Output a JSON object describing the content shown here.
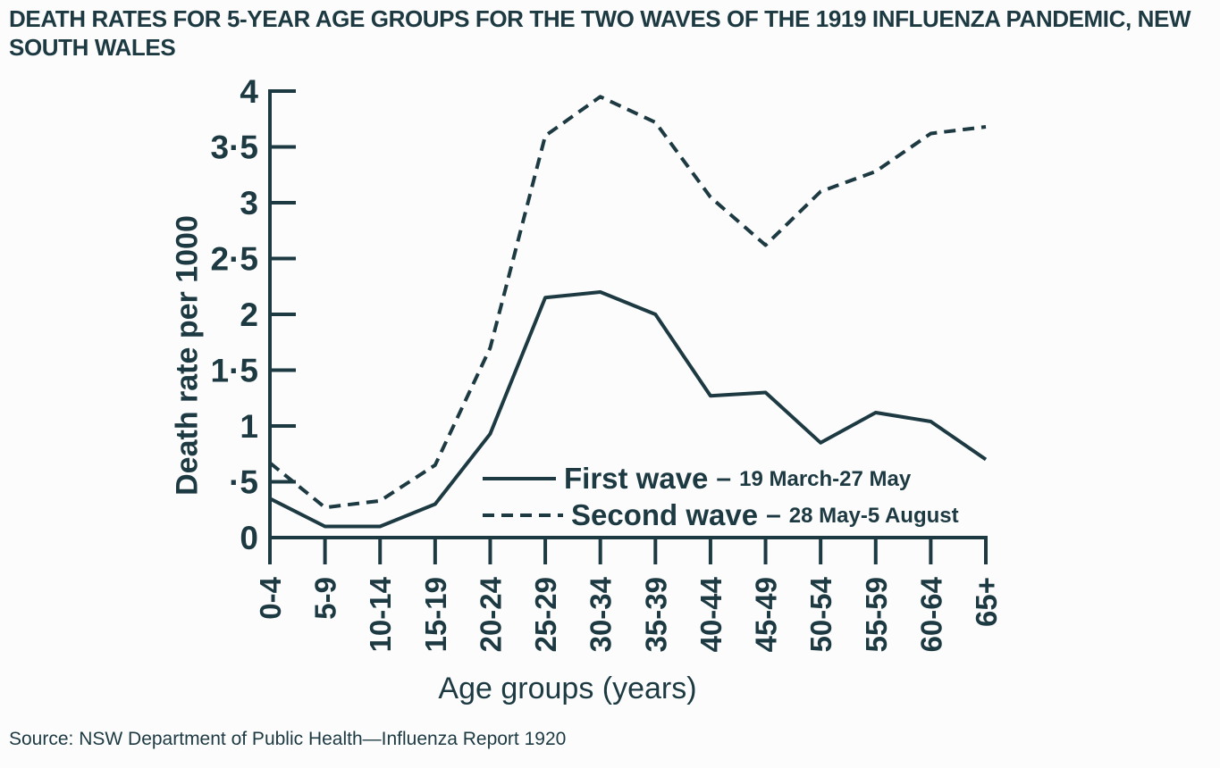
{
  "page": {
    "title_line1": "DEATH RATES FOR 5-YEAR AGE GROUPS FOR THE TWO WAVES OF THE 1919 INFLUENZA PANDEMIC, NEW",
    "title_line2": "SOUTH WALES",
    "source": "Source: NSW Department of Public Health—Influenza Report 1920"
  },
  "colors": {
    "ink": "#1d3a42",
    "background": "#fcfcfc"
  },
  "chart_data": {
    "type": "line",
    "title": "DEATH RATES FOR 5-YEAR AGE GROUPS FOR THE TWO WAVES OF THE 1919 INFLUENZA PANDEMIC, NEW SOUTH WALES",
    "xlabel": "Age groups (years)",
    "ylabel": "Death rate per 1000",
    "ylim": [
      0,
      4
    ],
    "grid": false,
    "legend_position": "inside-bottom-center",
    "legend_separator": "–",
    "ytick_values": [
      0,
      0.5,
      1,
      1.5,
      2,
      2.5,
      3,
      3.5,
      4
    ],
    "ytick_labels": [
      "0",
      "·5",
      "1",
      "1·5",
      "2",
      "2·5",
      "3",
      "3·5",
      "4"
    ],
    "categories": [
      "0-4",
      "5-9",
      "10-14",
      "15-19",
      "20-24",
      "25-29",
      "30-34",
      "35-39",
      "40-44",
      "45-49",
      "50-54",
      "55-59",
      "60-64",
      "65+"
    ],
    "series": [
      {
        "name": "First wave",
        "dates": "19 March-27 May",
        "style": "solid",
        "values": [
          0.35,
          0.1,
          0.1,
          0.3,
          0.93,
          2.15,
          2.2,
          2.0,
          1.27,
          1.3,
          0.85,
          1.12,
          1.04,
          0.7
        ]
      },
      {
        "name": "Second wave",
        "dates": "28 May-5 August",
        "style": "dashed",
        "values": [
          0.67,
          0.27,
          0.33,
          0.65,
          1.7,
          3.6,
          3.95,
          3.72,
          3.05,
          2.62,
          3.1,
          3.28,
          3.62,
          3.68
        ]
      }
    ]
  }
}
